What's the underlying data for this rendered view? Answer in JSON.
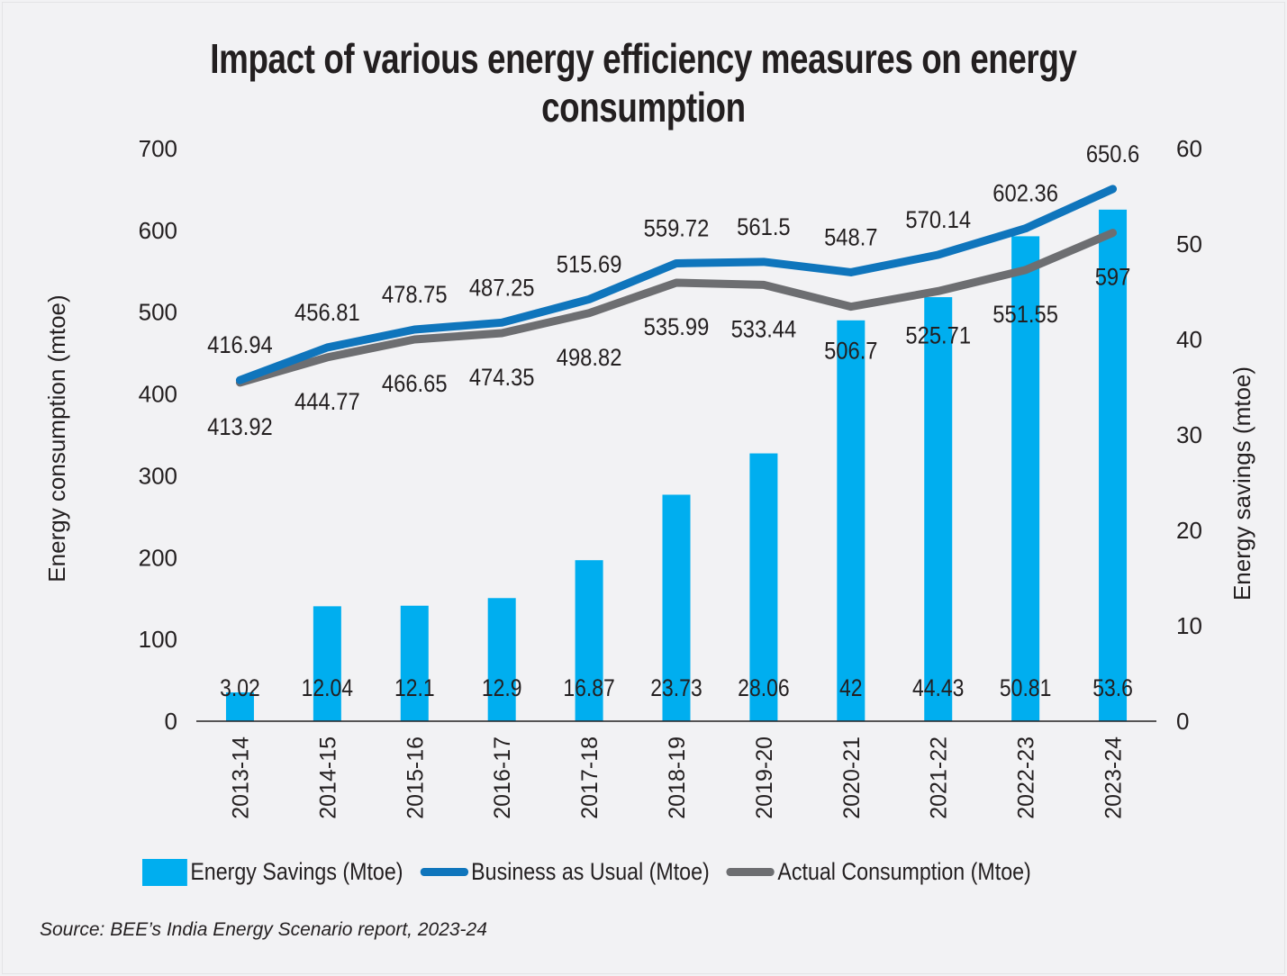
{
  "chart_data": {
    "type": "bar",
    "title": "Impact of various energy efficiency measures on energy consumption",
    "categories": [
      "2013-14",
      "2014-15",
      "2015-16",
      "2016-17",
      "2017-18",
      "2018-19",
      "2019-20",
      "2020-21",
      "2021-22",
      "2022-23",
      "2023-24"
    ],
    "ylabel": "Energy consumption (mtoe)",
    "y2label": "Energy savings (mtoe)",
    "xlabel": "",
    "ylim": [
      0,
      700
    ],
    "y2lim": [
      0,
      60
    ],
    "yticks": [
      "0",
      "100",
      "200",
      "300",
      "400",
      "500",
      "600",
      "700"
    ],
    "y2ticks": [
      "0",
      "10",
      "20",
      "30",
      "40",
      "50",
      "60"
    ],
    "grid": false,
    "legend_position": "bottom",
    "series": [
      {
        "name": "Energy Savings (Mtoe)",
        "type": "bar",
        "axis": "right",
        "color": "#00aeef",
        "values": [
          3.02,
          12.04,
          12.1,
          12.9,
          16.87,
          23.73,
          28.06,
          42,
          44.43,
          50.81,
          53.6
        ],
        "labels": [
          "3.02",
          "12.04",
          "12.1",
          "12.9",
          "16.87",
          "23.73",
          "28.06",
          "42",
          "44.43",
          "50.81",
          "53.6"
        ]
      },
      {
        "name": "Business as Usual (Mtoe)",
        "type": "line",
        "axis": "left",
        "color": "#0f75bc",
        "values": [
          416.94,
          456.81,
          478.75,
          487.25,
          515.69,
          559.72,
          561.5,
          548.7,
          570.14,
          602.36,
          650.6
        ],
        "labels": [
          "416.94",
          "456.81",
          "478.75",
          "487.25",
          "515.69",
          "559.72",
          "561.5",
          "548.7",
          "570.14",
          "602.36",
          "650.6"
        ]
      },
      {
        "name": "Actual Consumption (Mtoe)",
        "type": "line",
        "axis": "left",
        "color": "#6d6e71",
        "values": [
          413.92,
          444.77,
          466.65,
          474.35,
          498.82,
          535.99,
          533.44,
          506.7,
          525.71,
          551.55,
          597
        ],
        "labels": [
          "413.92",
          "444.77",
          "466.65",
          "474.35",
          "498.82",
          "535.99",
          "533.44",
          "506.7",
          "525.71",
          "551.55",
          "597"
        ]
      }
    ]
  },
  "legend": {
    "items": [
      {
        "label": "Energy Savings (Mtoe)",
        "color": "#00aeef",
        "kind": "bar"
      },
      {
        "label": "Business as Usual (Mtoe)",
        "color": "#0f75bc",
        "kind": "line"
      },
      {
        "label": "Actual Consumption (Mtoe)",
        "color": "#6d6e71",
        "kind": "line"
      }
    ]
  },
  "source": "Source: BEE’s India Energy Scenario report, 2023-24"
}
